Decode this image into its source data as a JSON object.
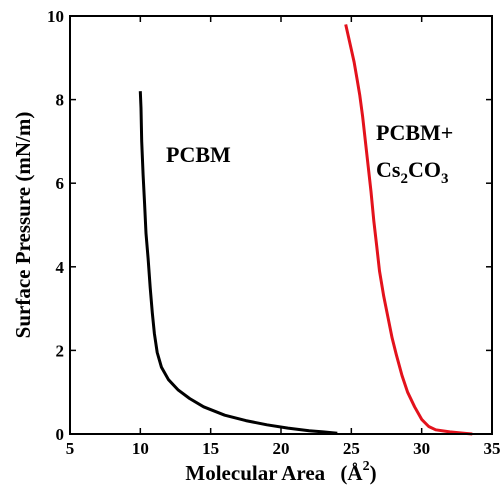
{
  "chart_data": {
    "type": "line",
    "title": "",
    "xlabel": "Molecular Area",
    "xlabel_unit": "(Å",
    "xlabel_unit_sup": "2",
    "xlabel_unit_close": ")",
    "ylabel": "Surface Pressure (mN/m)",
    "xlim": [
      5,
      35
    ],
    "ylim": [
      0,
      10
    ],
    "x_ticks": [
      "5",
      "10",
      "15",
      "20",
      "25",
      "30",
      "35"
    ],
    "y_ticks": [
      "0",
      "2",
      "4",
      "6",
      "8",
      "10"
    ],
    "grid": false,
    "series": [
      {
        "name": "PCBM",
        "color": "#000000",
        "points": [
          [
            10.0,
            8.2
          ],
          [
            10.05,
            7.8
          ],
          [
            10.1,
            7.0
          ],
          [
            10.2,
            6.2
          ],
          [
            10.3,
            5.5
          ],
          [
            10.4,
            4.8
          ],
          [
            10.55,
            4.2
          ],
          [
            10.7,
            3.5
          ],
          [
            10.85,
            2.9
          ],
          [
            11.0,
            2.4
          ],
          [
            11.2,
            1.95
          ],
          [
            11.5,
            1.6
          ],
          [
            12.0,
            1.3
          ],
          [
            12.7,
            1.05
          ],
          [
            13.5,
            0.85
          ],
          [
            14.5,
            0.65
          ],
          [
            16.0,
            0.45
          ],
          [
            17.5,
            0.32
          ],
          [
            19.0,
            0.22
          ],
          [
            20.5,
            0.14
          ],
          [
            22.0,
            0.08
          ],
          [
            23.0,
            0.05
          ],
          [
            24.0,
            0.02
          ]
        ]
      },
      {
        "name": "PCBM+Cs2CO3",
        "color": "#e3121c",
        "points": [
          [
            24.6,
            9.8
          ],
          [
            24.8,
            9.5
          ],
          [
            25.0,
            9.2
          ],
          [
            25.2,
            8.9
          ],
          [
            25.4,
            8.5
          ],
          [
            25.6,
            8.1
          ],
          [
            25.8,
            7.6
          ],
          [
            26.0,
            7.0
          ],
          [
            26.2,
            6.4
          ],
          [
            26.4,
            5.8
          ],
          [
            26.6,
            5.1
          ],
          [
            26.8,
            4.5
          ],
          [
            27.0,
            3.9
          ],
          [
            27.3,
            3.3
          ],
          [
            27.6,
            2.8
          ],
          [
            27.9,
            2.3
          ],
          [
            28.2,
            1.9
          ],
          [
            28.6,
            1.4
          ],
          [
            29.0,
            1.0
          ],
          [
            29.5,
            0.65
          ],
          [
            30.0,
            0.35
          ],
          [
            30.5,
            0.18
          ],
          [
            31.0,
            0.1
          ],
          [
            32.0,
            0.05
          ],
          [
            33.0,
            0.02
          ],
          [
            33.6,
            0.0
          ]
        ]
      }
    ],
    "annotations": {
      "pcbm": "PCBM",
      "mix_line1": "PCBM+",
      "mix_cs": "Cs",
      "mix_sub2": "2",
      "mix_co": "CO",
      "mix_sub3": "3"
    }
  }
}
